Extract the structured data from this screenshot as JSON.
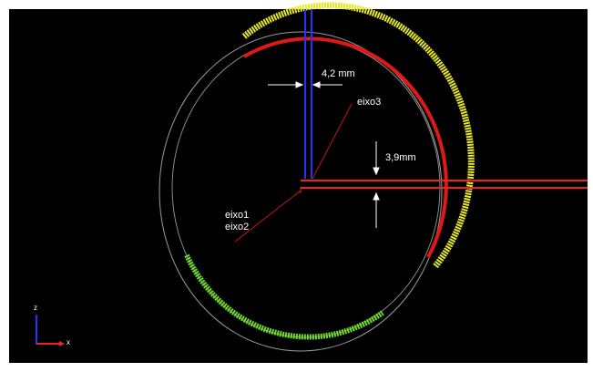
{
  "labels": {
    "gap_horizontal": "4,2 mm",
    "axis3": "eixo3",
    "gap_vertical": "3,9mm",
    "axis1": "eixo1",
    "axis2": "eixo2",
    "icon_z": "z",
    "icon_x": "x"
  }
}
